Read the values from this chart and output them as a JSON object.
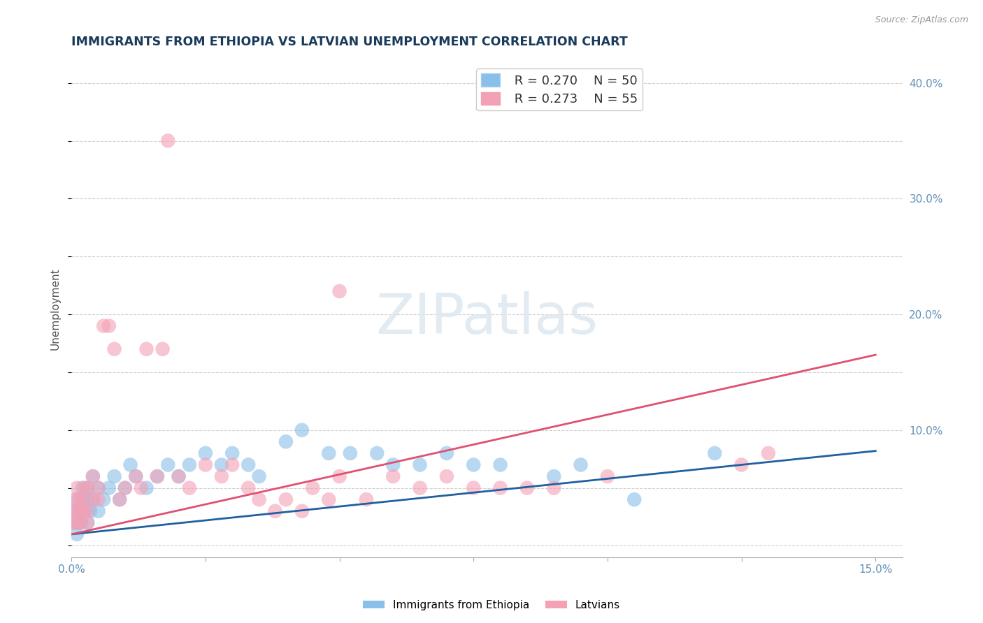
{
  "title": "IMMIGRANTS FROM ETHIOPIA VS LATVIAN UNEMPLOYMENT CORRELATION CHART",
  "source": "Source: ZipAtlas.com",
  "ylabel": "Unemployment",
  "xlim": [
    0.0,
    0.155
  ],
  "ylim": [
    -0.01,
    0.42
  ],
  "xticks": [
    0.0,
    0.025,
    0.05,
    0.075,
    0.1,
    0.125,
    0.15
  ],
  "xtick_labels": [
    "0.0%",
    "",
    "",
    "",
    "",
    "",
    "15.0%"
  ],
  "yticks_right": [
    0.0,
    0.1,
    0.2,
    0.3,
    0.4
  ],
  "ytick_labels_right": [
    "",
    "10.0%",
    "20.0%",
    "30.0%",
    "40.0%"
  ],
  "series1_name": "Immigrants from Ethiopia",
  "series1_color": "#89bfe8",
  "series1_line_color": "#2060a0",
  "series1_R": 0.27,
  "series1_N": 50,
  "series2_name": "Latvians",
  "series2_color": "#f4a0b5",
  "series2_line_color": "#e05070",
  "series2_R": 0.273,
  "series2_N": 55,
  "background_color": "#ffffff",
  "grid_color": "#d0d0d0",
  "watermark": "ZIPatlas",
  "title_color": "#1a3a5c",
  "title_fontsize": 12.5,
  "series1_x": [
    0.0005,
    0.0008,
    0.001,
    0.001,
    0.0012,
    0.0015,
    0.0018,
    0.002,
    0.002,
    0.0022,
    0.0025,
    0.003,
    0.003,
    0.003,
    0.0035,
    0.004,
    0.004,
    0.005,
    0.005,
    0.006,
    0.007,
    0.008,
    0.009,
    0.01,
    0.011,
    0.012,
    0.014,
    0.016,
    0.018,
    0.02,
    0.022,
    0.025,
    0.028,
    0.03,
    0.033,
    0.035,
    0.04,
    0.043,
    0.048,
    0.052,
    0.057,
    0.06,
    0.065,
    0.07,
    0.075,
    0.08,
    0.09,
    0.095,
    0.105,
    0.12
  ],
  "series1_y": [
    0.02,
    0.03,
    0.01,
    0.04,
    0.02,
    0.03,
    0.02,
    0.03,
    0.05,
    0.04,
    0.03,
    0.02,
    0.04,
    0.05,
    0.03,
    0.04,
    0.06,
    0.03,
    0.05,
    0.04,
    0.05,
    0.06,
    0.04,
    0.05,
    0.07,
    0.06,
    0.05,
    0.06,
    0.07,
    0.06,
    0.07,
    0.08,
    0.07,
    0.08,
    0.07,
    0.06,
    0.09,
    0.1,
    0.08,
    0.08,
    0.08,
    0.07,
    0.07,
    0.08,
    0.07,
    0.07,
    0.06,
    0.07,
    0.04,
    0.08
  ],
  "series2_x": [
    0.0003,
    0.0005,
    0.0007,
    0.001,
    0.001,
    0.0012,
    0.0015,
    0.0018,
    0.002,
    0.002,
    0.0022,
    0.0025,
    0.003,
    0.003,
    0.003,
    0.004,
    0.004,
    0.005,
    0.005,
    0.006,
    0.007,
    0.008,
    0.009,
    0.01,
    0.012,
    0.013,
    0.014,
    0.016,
    0.017,
    0.018,
    0.02,
    0.022,
    0.025,
    0.028,
    0.03,
    0.033,
    0.035,
    0.038,
    0.04,
    0.043,
    0.045,
    0.048,
    0.05,
    0.05,
    0.055,
    0.06,
    0.065,
    0.07,
    0.075,
    0.08,
    0.085,
    0.09,
    0.1,
    0.125,
    0.13
  ],
  "series2_y": [
    0.02,
    0.03,
    0.04,
    0.02,
    0.05,
    0.03,
    0.04,
    0.02,
    0.03,
    0.04,
    0.03,
    0.05,
    0.02,
    0.03,
    0.05,
    0.04,
    0.06,
    0.05,
    0.04,
    0.19,
    0.19,
    0.17,
    0.04,
    0.05,
    0.06,
    0.05,
    0.17,
    0.06,
    0.17,
    0.35,
    0.06,
    0.05,
    0.07,
    0.06,
    0.07,
    0.05,
    0.04,
    0.03,
    0.04,
    0.03,
    0.05,
    0.04,
    0.22,
    0.06,
    0.04,
    0.06,
    0.05,
    0.06,
    0.05,
    0.05,
    0.05,
    0.05,
    0.06,
    0.07,
    0.08
  ],
  "trend1_x0": 0.0,
  "trend1_y0": 0.01,
  "trend1_x1": 0.15,
  "trend1_y1": 0.082,
  "trend2_x0": 0.0,
  "trend2_y0": 0.01,
  "trend2_x1": 0.15,
  "trend2_y1": 0.165
}
